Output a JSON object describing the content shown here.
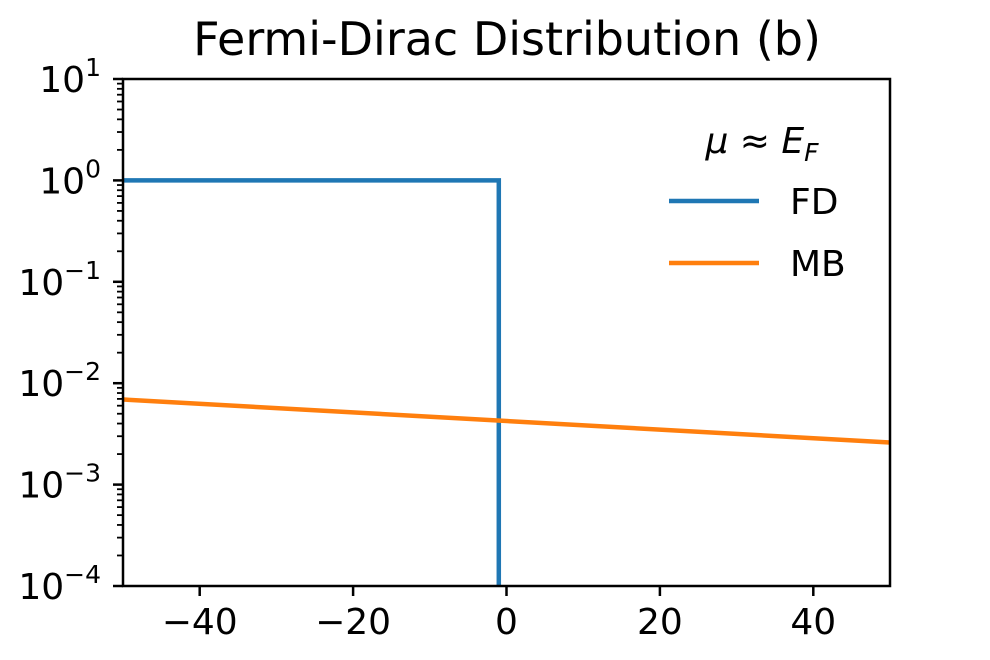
{
  "chart_data": {
    "type": "line",
    "title": "Fermi-Dirac Distribution (b)",
    "xlabel": "",
    "ylabel": "",
    "xlim": [
      -50,
      50
    ],
    "ylim": [
      0.0001,
      10
    ],
    "yscale": "log",
    "x_ticks": [
      -40,
      -20,
      0,
      20,
      40
    ],
    "x_tick_labels": [
      "−40",
      "−20",
      "0",
      "20",
      "40"
    ],
    "y_tick_bases": [
      "10",
      "10",
      "10",
      "10",
      "10",
      "10"
    ],
    "y_tick_exponents": [
      "−4",
      "−3",
      "−2",
      "−1",
      "0",
      "1"
    ],
    "y_tick_values": [
      0.0001,
      0.001,
      0.01,
      0.1,
      1,
      10
    ],
    "grid": false,
    "legend": {
      "placement": "top-right",
      "title_main": "μ ≈ E",
      "title_sub": "F"
    },
    "series": [
      {
        "name": "FD",
        "color": "#1f77b4",
        "x": [
          -50,
          -1,
          -1
        ],
        "y": [
          1.0,
          1.0,
          0.0001
        ]
      },
      {
        "name": "MB",
        "color": "#ff7f0e",
        "x": [
          -50,
          50
        ],
        "y": [
          0.0069,
          0.0026
        ]
      }
    ]
  }
}
